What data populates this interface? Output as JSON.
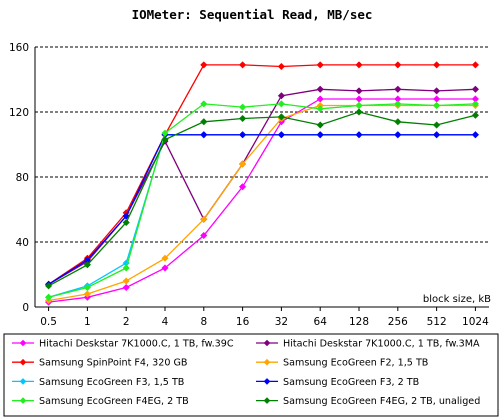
{
  "chart_data": {
    "type": "line",
    "title": "IOMeter: Sequential Read, MB/sec",
    "xlabel": "block size, kB",
    "ylabel": "",
    "categories": [
      "0.5",
      "1",
      "2",
      "4",
      "8",
      "16",
      "32",
      "64",
      "128",
      "256",
      "512",
      "1024"
    ],
    "ylim": [
      0,
      160
    ],
    "yticks": [
      0,
      40,
      80,
      120,
      160
    ],
    "grid": "horizontal dashed",
    "legend_placement": "bottom",
    "series": [
      {
        "name": "Hitachi Deskstar 7K1000.C, 1 TB, fw.39C",
        "color": "#ff00ff",
        "values": [
          3,
          6,
          12,
          24,
          44,
          74,
          114,
          128,
          128,
          128,
          128,
          128
        ]
      },
      {
        "name": "Hitachi Deskstar 7K1000.C, 1 TB, fw.3MA",
        "color": "#800080",
        "values": [
          14,
          28,
          56,
          102,
          54,
          88,
          130,
          134,
          133,
          134,
          133,
          134
        ]
      },
      {
        "name": "Samsung SpinPoint F4, 320 GB",
        "color": "#ff0000",
        "values": [
          14,
          30,
          58,
          106,
          149,
          149,
          148,
          149,
          149,
          149,
          149,
          149
        ]
      },
      {
        "name": "Samsung EcoGreen F2, 1,5 TB",
        "color": "#ffa500",
        "values": [
          4,
          8,
          16,
          30,
          54,
          88,
          116,
          124,
          124,
          124,
          124,
          124
        ]
      },
      {
        "name": "Samsung EcoGreen F3, 1,5 TB",
        "color": "#00c8ff",
        "values": [
          6,
          13,
          27,
          106,
          106,
          106,
          106,
          106,
          106,
          106,
          106,
          106
        ]
      },
      {
        "name": "Samsung EcoGreen F3, 2 TB",
        "color": "#0000ff",
        "values": [
          14,
          29,
          56,
          106,
          106,
          106,
          106,
          106,
          106,
          106,
          106,
          106
        ]
      },
      {
        "name": "Samsung EcoGreen F4EG, 2 TB",
        "color": "#22ee22",
        "values": [
          6,
          12,
          24,
          107,
          125,
          123,
          125,
          122,
          124,
          125,
          124,
          125
        ]
      },
      {
        "name": "Samsung EcoGreen F4EG, 2 TB, unaliged",
        "color": "#008000",
        "values": [
          13,
          26,
          52,
          103,
          114,
          116,
          117,
          112,
          120,
          114,
          112,
          118
        ]
      }
    ]
  }
}
